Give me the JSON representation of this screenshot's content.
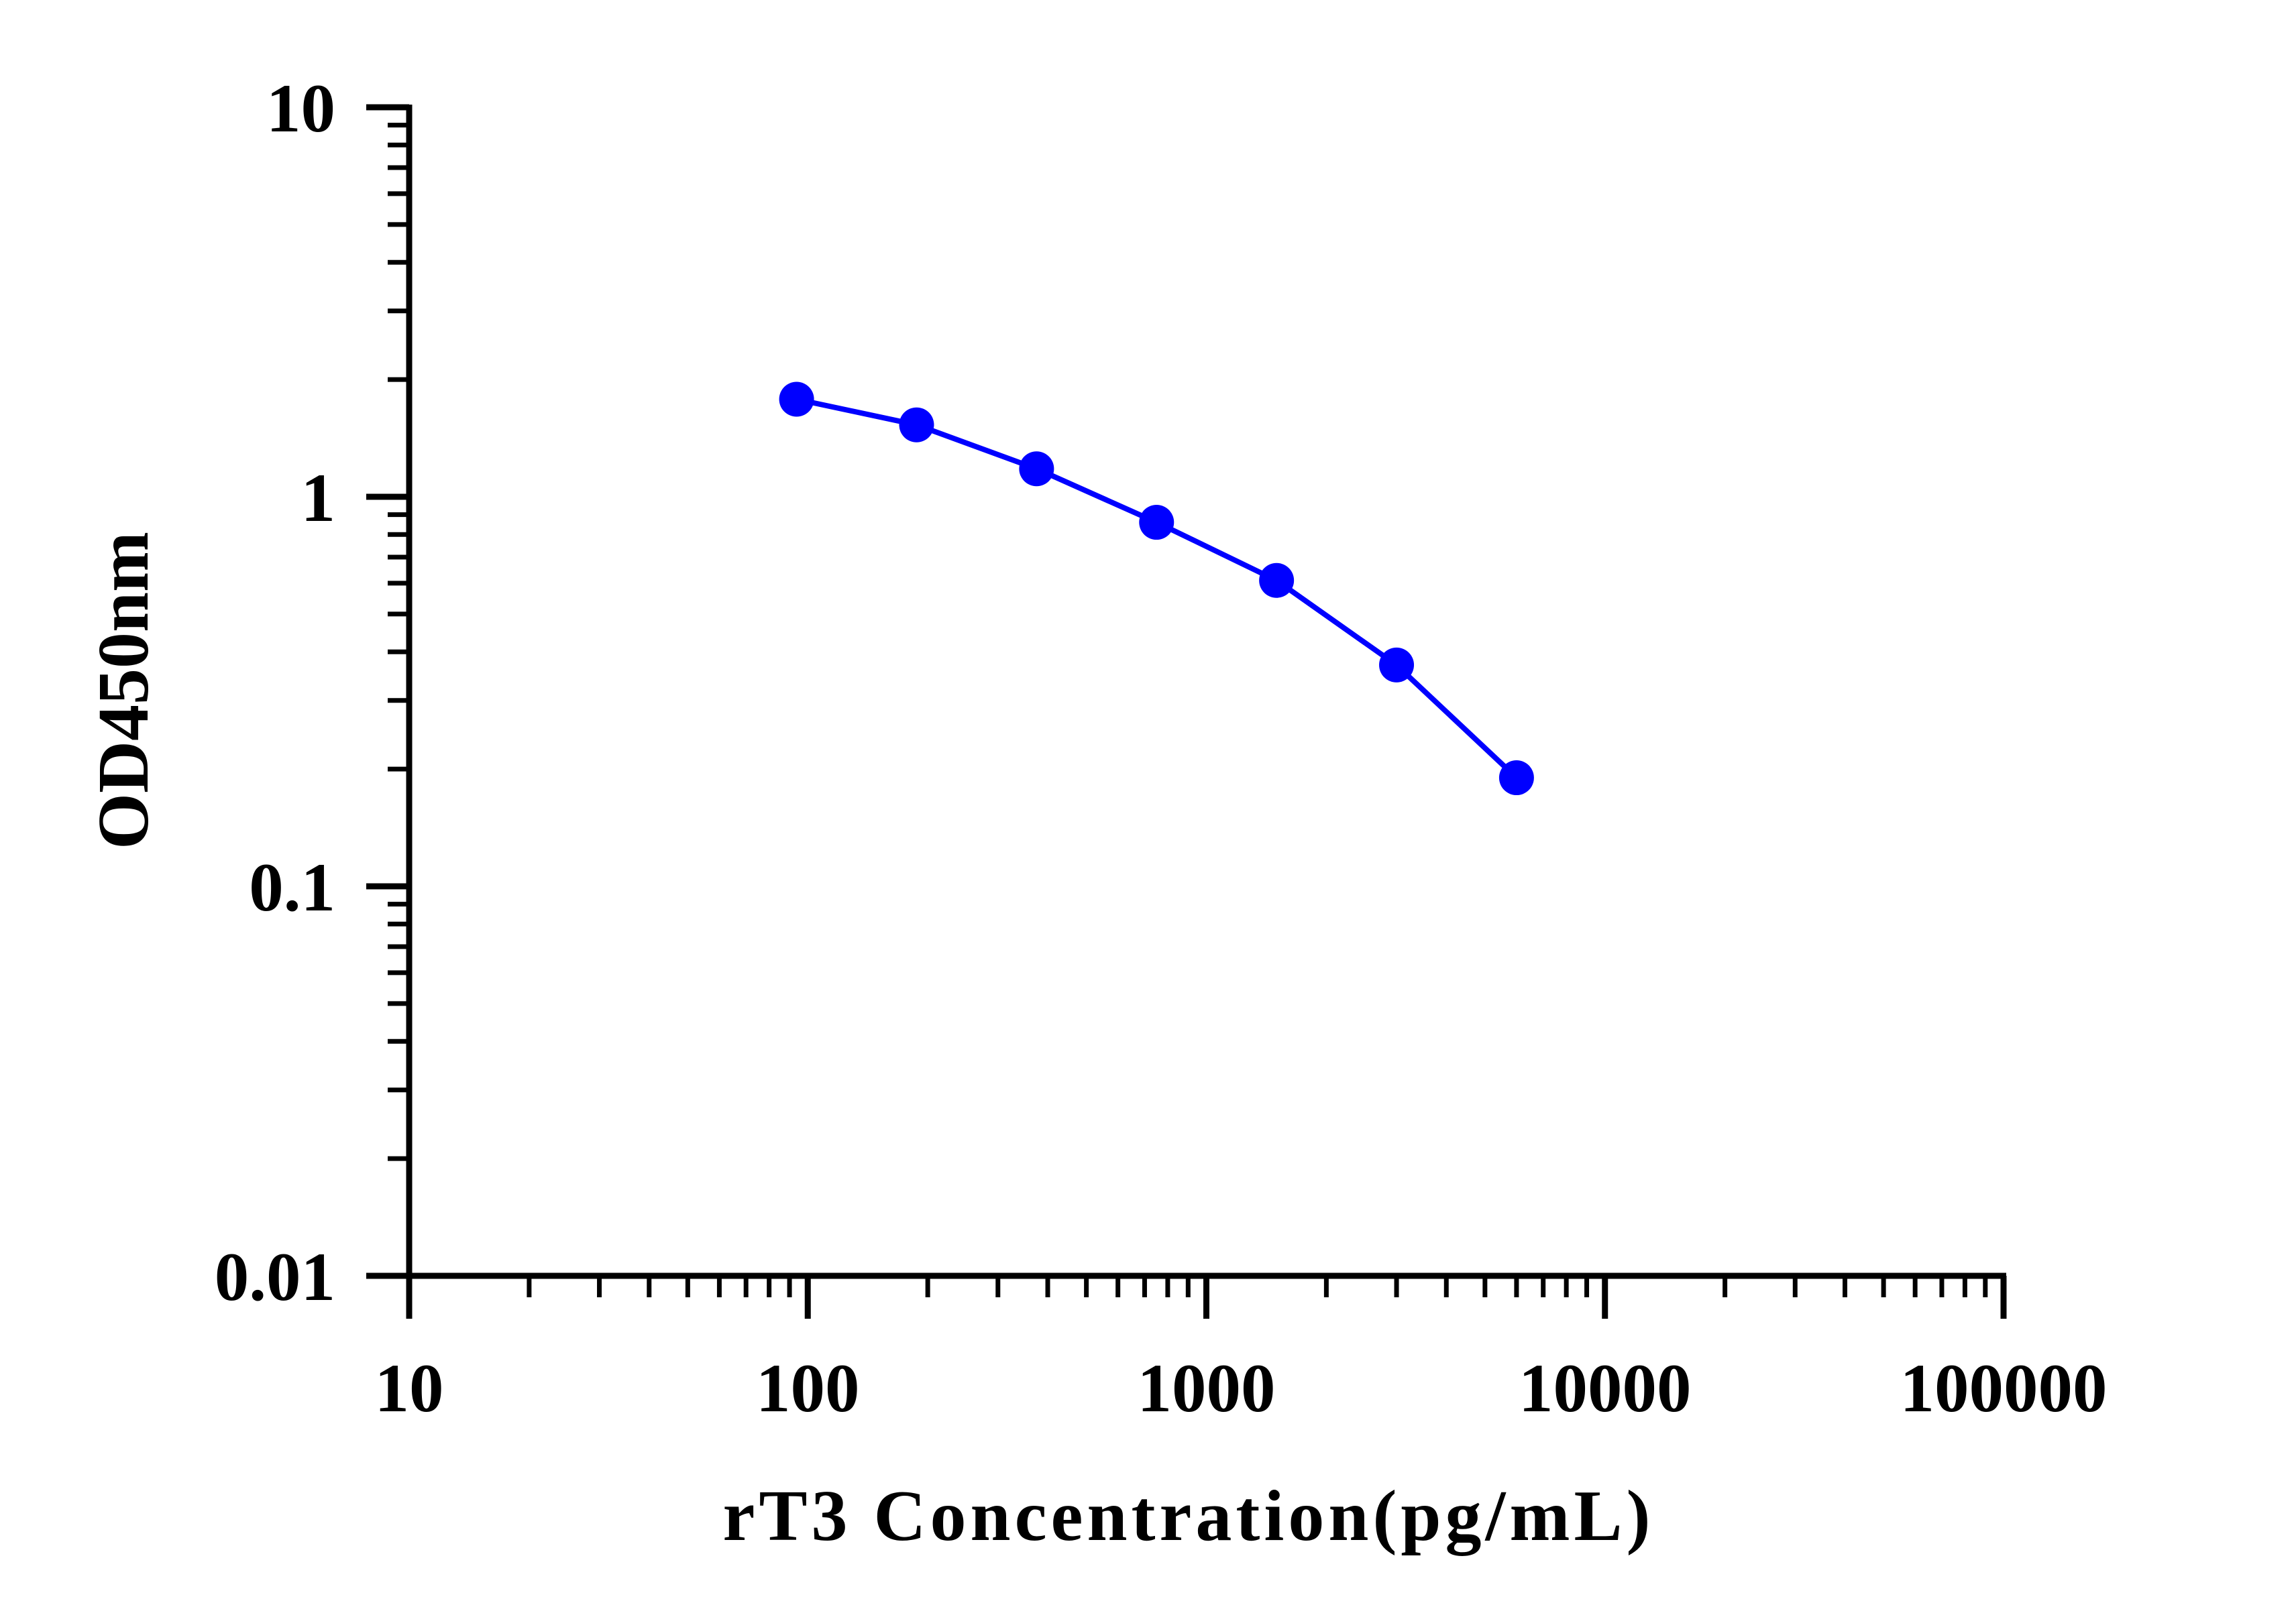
{
  "chart_data": {
    "type": "line",
    "xlabel": "rT3 Concentration(pg/mL)",
    "ylabel": "OD450nm",
    "x_scale": "log",
    "y_scale": "log",
    "xlim": [
      10,
      100000
    ],
    "ylim": [
      0.01,
      10
    ],
    "x_ticks": [
      10,
      100,
      1000,
      10000,
      100000
    ],
    "x_tick_labels": [
      "10",
      "100",
      "1000",
      "10000",
      "100000"
    ],
    "y_ticks": [
      0.01,
      0.1,
      1,
      10
    ],
    "y_tick_labels": [
      "0.01",
      "0.1",
      "1",
      "10"
    ],
    "grid": false,
    "series": [
      {
        "x": [
          93.75,
          187.5,
          375,
          750,
          1500,
          3000,
          6000
        ],
        "y": [
          1.78,
          1.53,
          1.18,
          0.86,
          0.61,
          0.37,
          0.19
        ],
        "color": "#0000ff",
        "marker": "circle"
      }
    ]
  }
}
